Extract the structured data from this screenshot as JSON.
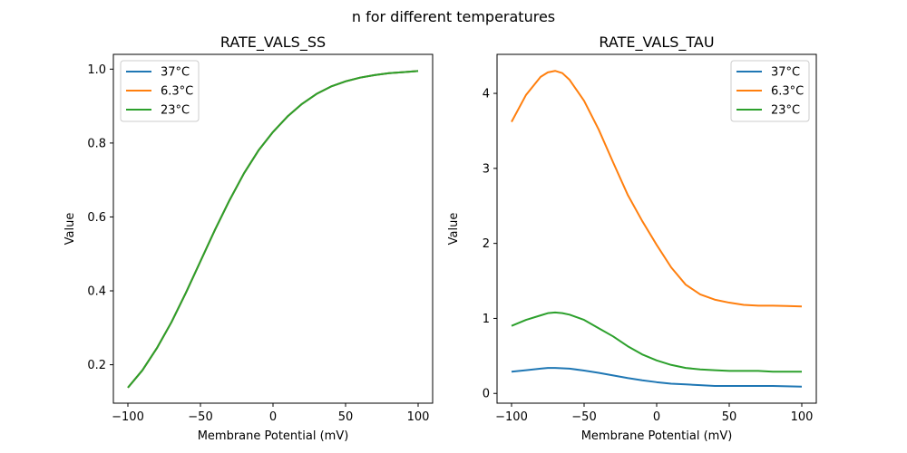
{
  "figure": {
    "suptitle": "n for different temperatures"
  },
  "chart_data": [
    {
      "type": "line",
      "title": "RATE_VALS_SS",
      "xlabel": "Membrane Potential (mV)",
      "ylabel": "Value",
      "xlim": [
        -110,
        110
      ],
      "ylim": [
        0.096,
        1.04
      ],
      "xticks": [
        -100,
        -50,
        0,
        50,
        100
      ],
      "xtick_labels": [
        "−100",
        "−50",
        "0",
        "50",
        "100"
      ],
      "yticks": [
        0.2,
        0.4,
        0.6,
        0.8,
        1.0
      ],
      "ytick_labels": [
        "0.2",
        "0.4",
        "0.6",
        "0.8",
        "1.0"
      ],
      "legend_position": "top-left",
      "x": [
        -100,
        -90,
        -80,
        -70,
        -60,
        -50,
        -40,
        -30,
        -20,
        -10,
        0,
        10,
        20,
        30,
        40,
        50,
        60,
        70,
        80,
        90,
        100
      ],
      "series": [
        {
          "name": "37°C",
          "color": "#1f77b4",
          "values": [
            0.138,
            0.185,
            0.245,
            0.315,
            0.395,
            0.48,
            0.565,
            0.645,
            0.718,
            0.78,
            0.83,
            0.872,
            0.906,
            0.933,
            0.953,
            0.967,
            0.977,
            0.984,
            0.989,
            0.992,
            0.995
          ]
        },
        {
          "name": "6.3°C",
          "color": "#ff7f0e",
          "values": [
            0.138,
            0.185,
            0.245,
            0.315,
            0.395,
            0.48,
            0.565,
            0.645,
            0.718,
            0.78,
            0.83,
            0.872,
            0.906,
            0.933,
            0.953,
            0.967,
            0.977,
            0.984,
            0.989,
            0.992,
            0.995
          ]
        },
        {
          "name": "23°C",
          "color": "#2ca02c",
          "values": [
            0.138,
            0.185,
            0.245,
            0.315,
            0.395,
            0.48,
            0.565,
            0.645,
            0.718,
            0.78,
            0.83,
            0.872,
            0.906,
            0.933,
            0.953,
            0.967,
            0.977,
            0.984,
            0.989,
            0.992,
            0.995
          ]
        }
      ]
    },
    {
      "type": "line",
      "title": "RATE_VALS_TAU",
      "xlabel": "Membrane Potential (mV)",
      "ylabel": "Value",
      "xlim": [
        -110,
        110
      ],
      "ylim": [
        -0.13,
        4.52
      ],
      "xticks": [
        -100,
        -50,
        0,
        50,
        100
      ],
      "xtick_labels": [
        "−100",
        "−50",
        "0",
        "50",
        "100"
      ],
      "yticks": [
        0,
        1,
        2,
        3,
        4
      ],
      "ytick_labels": [
        "0",
        "1",
        "2",
        "3",
        "4"
      ],
      "legend_position": "top-right",
      "x": [
        -100,
        -90,
        -80,
        -75,
        -70,
        -65,
        -60,
        -50,
        -40,
        -30,
        -20,
        -10,
        0,
        10,
        20,
        30,
        40,
        50,
        60,
        70,
        80,
        90,
        100
      ],
      "series": [
        {
          "name": "37°C",
          "color": "#1f77b4",
          "values": [
            0.29,
            0.31,
            0.33,
            0.34,
            0.34,
            0.335,
            0.33,
            0.305,
            0.275,
            0.24,
            0.205,
            0.175,
            0.15,
            0.13,
            0.12,
            0.11,
            0.1,
            0.1,
            0.1,
            0.1,
            0.1,
            0.095,
            0.09
          ]
        },
        {
          "name": "6.3°C",
          "color": "#ff7f0e",
          "values": [
            3.62,
            3.98,
            4.22,
            4.28,
            4.3,
            4.27,
            4.18,
            3.9,
            3.52,
            3.08,
            2.65,
            2.3,
            1.98,
            1.68,
            1.45,
            1.32,
            1.25,
            1.21,
            1.18,
            1.17,
            1.17,
            1.165,
            1.16
          ]
        },
        {
          "name": "23°C",
          "color": "#2ca02c",
          "values": [
            0.9,
            0.98,
            1.04,
            1.07,
            1.08,
            1.07,
            1.05,
            0.98,
            0.87,
            0.76,
            0.63,
            0.52,
            0.44,
            0.38,
            0.34,
            0.32,
            0.31,
            0.3,
            0.3,
            0.3,
            0.29,
            0.29,
            0.29
          ]
        }
      ]
    }
  ]
}
